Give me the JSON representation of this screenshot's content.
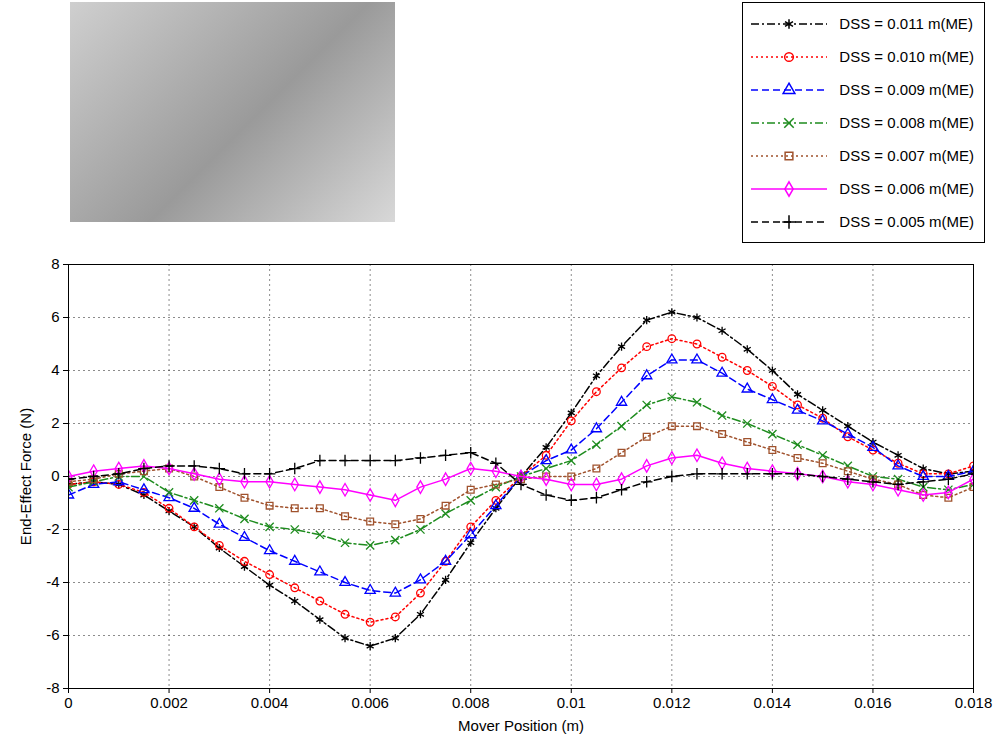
{
  "chart_data": {
    "type": "line",
    "x": [
      0,
      0.0005,
      0.001,
      0.0015,
      0.002,
      0.0025,
      0.003,
      0.0035,
      0.004,
      0.0045,
      0.005,
      0.0055,
      0.006,
      0.0065,
      0.007,
      0.0075,
      0.008,
      0.0085,
      0.009,
      0.0095,
      0.01,
      0.0105,
      0.011,
      0.0115,
      0.012,
      0.0125,
      0.013,
      0.0135,
      0.014,
      0.0145,
      0.015,
      0.0155,
      0.016,
      0.0165,
      0.017,
      0.0175,
      0.018
    ],
    "series": [
      {
        "name": "DSS = 0.011 m(ME)",
        "color": "#000000",
        "marker": "asterisk",
        "line_style": "dashdot",
        "values": [
          -0.3,
          -0.2,
          -0.3,
          -0.7,
          -1.3,
          -1.9,
          -2.7,
          -3.4,
          -4.1,
          -4.7,
          -5.4,
          -6.1,
          -6.4,
          -6.1,
          -5.2,
          -3.9,
          -2.5,
          -1.2,
          0,
          1.1,
          2.4,
          3.8,
          4.9,
          5.9,
          6.2,
          6.0,
          5.5,
          4.8,
          4.0,
          3.1,
          2.5,
          1.9,
          1.3,
          0.8,
          0.3,
          0.1,
          0.2
        ]
      },
      {
        "name": "DSS = 0.010 m(ME)",
        "color": "#ff0000",
        "marker": "circle",
        "line_style": "dotted",
        "values": [
          -0.3,
          -0.2,
          -0.3,
          -0.6,
          -1.2,
          -1.9,
          -2.6,
          -3.2,
          -3.7,
          -4.2,
          -4.7,
          -5.2,
          -5.5,
          -5.3,
          -4.4,
          -3.2,
          -1.9,
          -0.9,
          0,
          0.8,
          2.1,
          3.2,
          4.1,
          4.9,
          5.2,
          5.0,
          4.5,
          4.0,
          3.4,
          2.7,
          2.2,
          1.5,
          1.0,
          0.5,
          0.1,
          0.1,
          0.4
        ]
      },
      {
        "name": "DSS = 0.009 m(ME)",
        "color": "#0000ff",
        "marker": "triangle",
        "line_style": "dashed",
        "values": [
          -0.7,
          -0.3,
          -0.2,
          -0.5,
          -0.8,
          -1.2,
          -1.8,
          -2.3,
          -2.8,
          -3.2,
          -3.6,
          -4.0,
          -4.3,
          -4.4,
          -3.9,
          -3.2,
          -2.2,
          -1.1,
          0,
          0.6,
          1.0,
          1.8,
          2.8,
          3.8,
          4.4,
          4.4,
          3.9,
          3.3,
          2.9,
          2.5,
          2.1,
          1.6,
          1.1,
          0.4,
          0.0,
          0.0,
          0.2
        ]
      },
      {
        "name": "DSS = 0.008 m(ME)",
        "color": "#1e8c1e",
        "marker": "times",
        "line_style": "dashdot",
        "values": [
          -0.4,
          -0.2,
          0.0,
          0.0,
          -0.6,
          -0.9,
          -1.2,
          -1.6,
          -1.9,
          -2.0,
          -2.2,
          -2.5,
          -2.6,
          -2.4,
          -2.0,
          -1.4,
          -0.9,
          -0.4,
          0,
          0.3,
          0.6,
          1.2,
          1.9,
          2.7,
          3.0,
          2.8,
          2.3,
          2.0,
          1.6,
          1.2,
          0.8,
          0.4,
          0.0,
          -0.1,
          -0.4,
          -0.5,
          -0.3
        ]
      },
      {
        "name": "DSS = 0.007 m(ME)",
        "color": "#a0522d",
        "marker": "square",
        "line_style": "dotted",
        "values": [
          -0.2,
          -0.1,
          0.1,
          0.2,
          0.3,
          0.0,
          -0.4,
          -0.8,
          -1.1,
          -1.2,
          -1.2,
          -1.5,
          -1.7,
          -1.8,
          -1.6,
          -1.1,
          -0.5,
          -0.3,
          -0.1,
          0.0,
          0.0,
          0.3,
          0.9,
          1.5,
          1.9,
          1.9,
          1.6,
          1.3,
          1.0,
          0.7,
          0.5,
          0.2,
          -0.1,
          -0.3,
          -0.7,
          -0.8,
          -0.4
        ]
      },
      {
        "name": "DSS = 0.006 m(ME)",
        "color": "#ff00ff",
        "marker": "diamond",
        "line_style": "solid",
        "values": [
          0.0,
          0.2,
          0.3,
          0.4,
          0.3,
          0.1,
          -0.1,
          -0.2,
          -0.2,
          -0.3,
          -0.4,
          -0.5,
          -0.7,
          -0.9,
          -0.4,
          -0.1,
          0.3,
          0.2,
          0.0,
          -0.1,
          -0.3,
          -0.3,
          -0.1,
          0.4,
          0.7,
          0.8,
          0.5,
          0.3,
          0.2,
          0.1,
          0.0,
          -0.2,
          -0.3,
          -0.5,
          -0.7,
          -0.6,
          -0.1
        ]
      },
      {
        "name": "DSS = 0.005 m(ME)",
        "color": "#000000",
        "marker": "plus",
        "line_style": "dashed",
        "values": [
          -0.1,
          0.0,
          0.1,
          0.3,
          0.4,
          0.4,
          0.3,
          0.1,
          0.1,
          0.3,
          0.6,
          0.6,
          0.6,
          0.6,
          0.7,
          0.8,
          0.9,
          0.5,
          -0.3,
          -0.7,
          -0.9,
          -0.8,
          -0.5,
          -0.2,
          0.0,
          0.1,
          0.1,
          0.1,
          0.1,
          0.1,
          0.0,
          -0.1,
          -0.2,
          -0.3,
          -0.2,
          -0.1,
          0.1
        ]
      }
    ],
    "xlabel": "Mover Position (m)",
    "ylabel": "End-Effect Force (N)",
    "xlim": [
      0,
      0.018
    ],
    "xticks": [
      0,
      0.002,
      0.004,
      0.006,
      0.008,
      0.01,
      0.012,
      0.014,
      0.016,
      0.018
    ],
    "ylim": [
      -8,
      8
    ],
    "yticks": [
      -8,
      -6,
      -4,
      -2,
      0,
      2,
      4,
      6,
      8
    ],
    "grid": true,
    "legend": "top-right"
  }
}
